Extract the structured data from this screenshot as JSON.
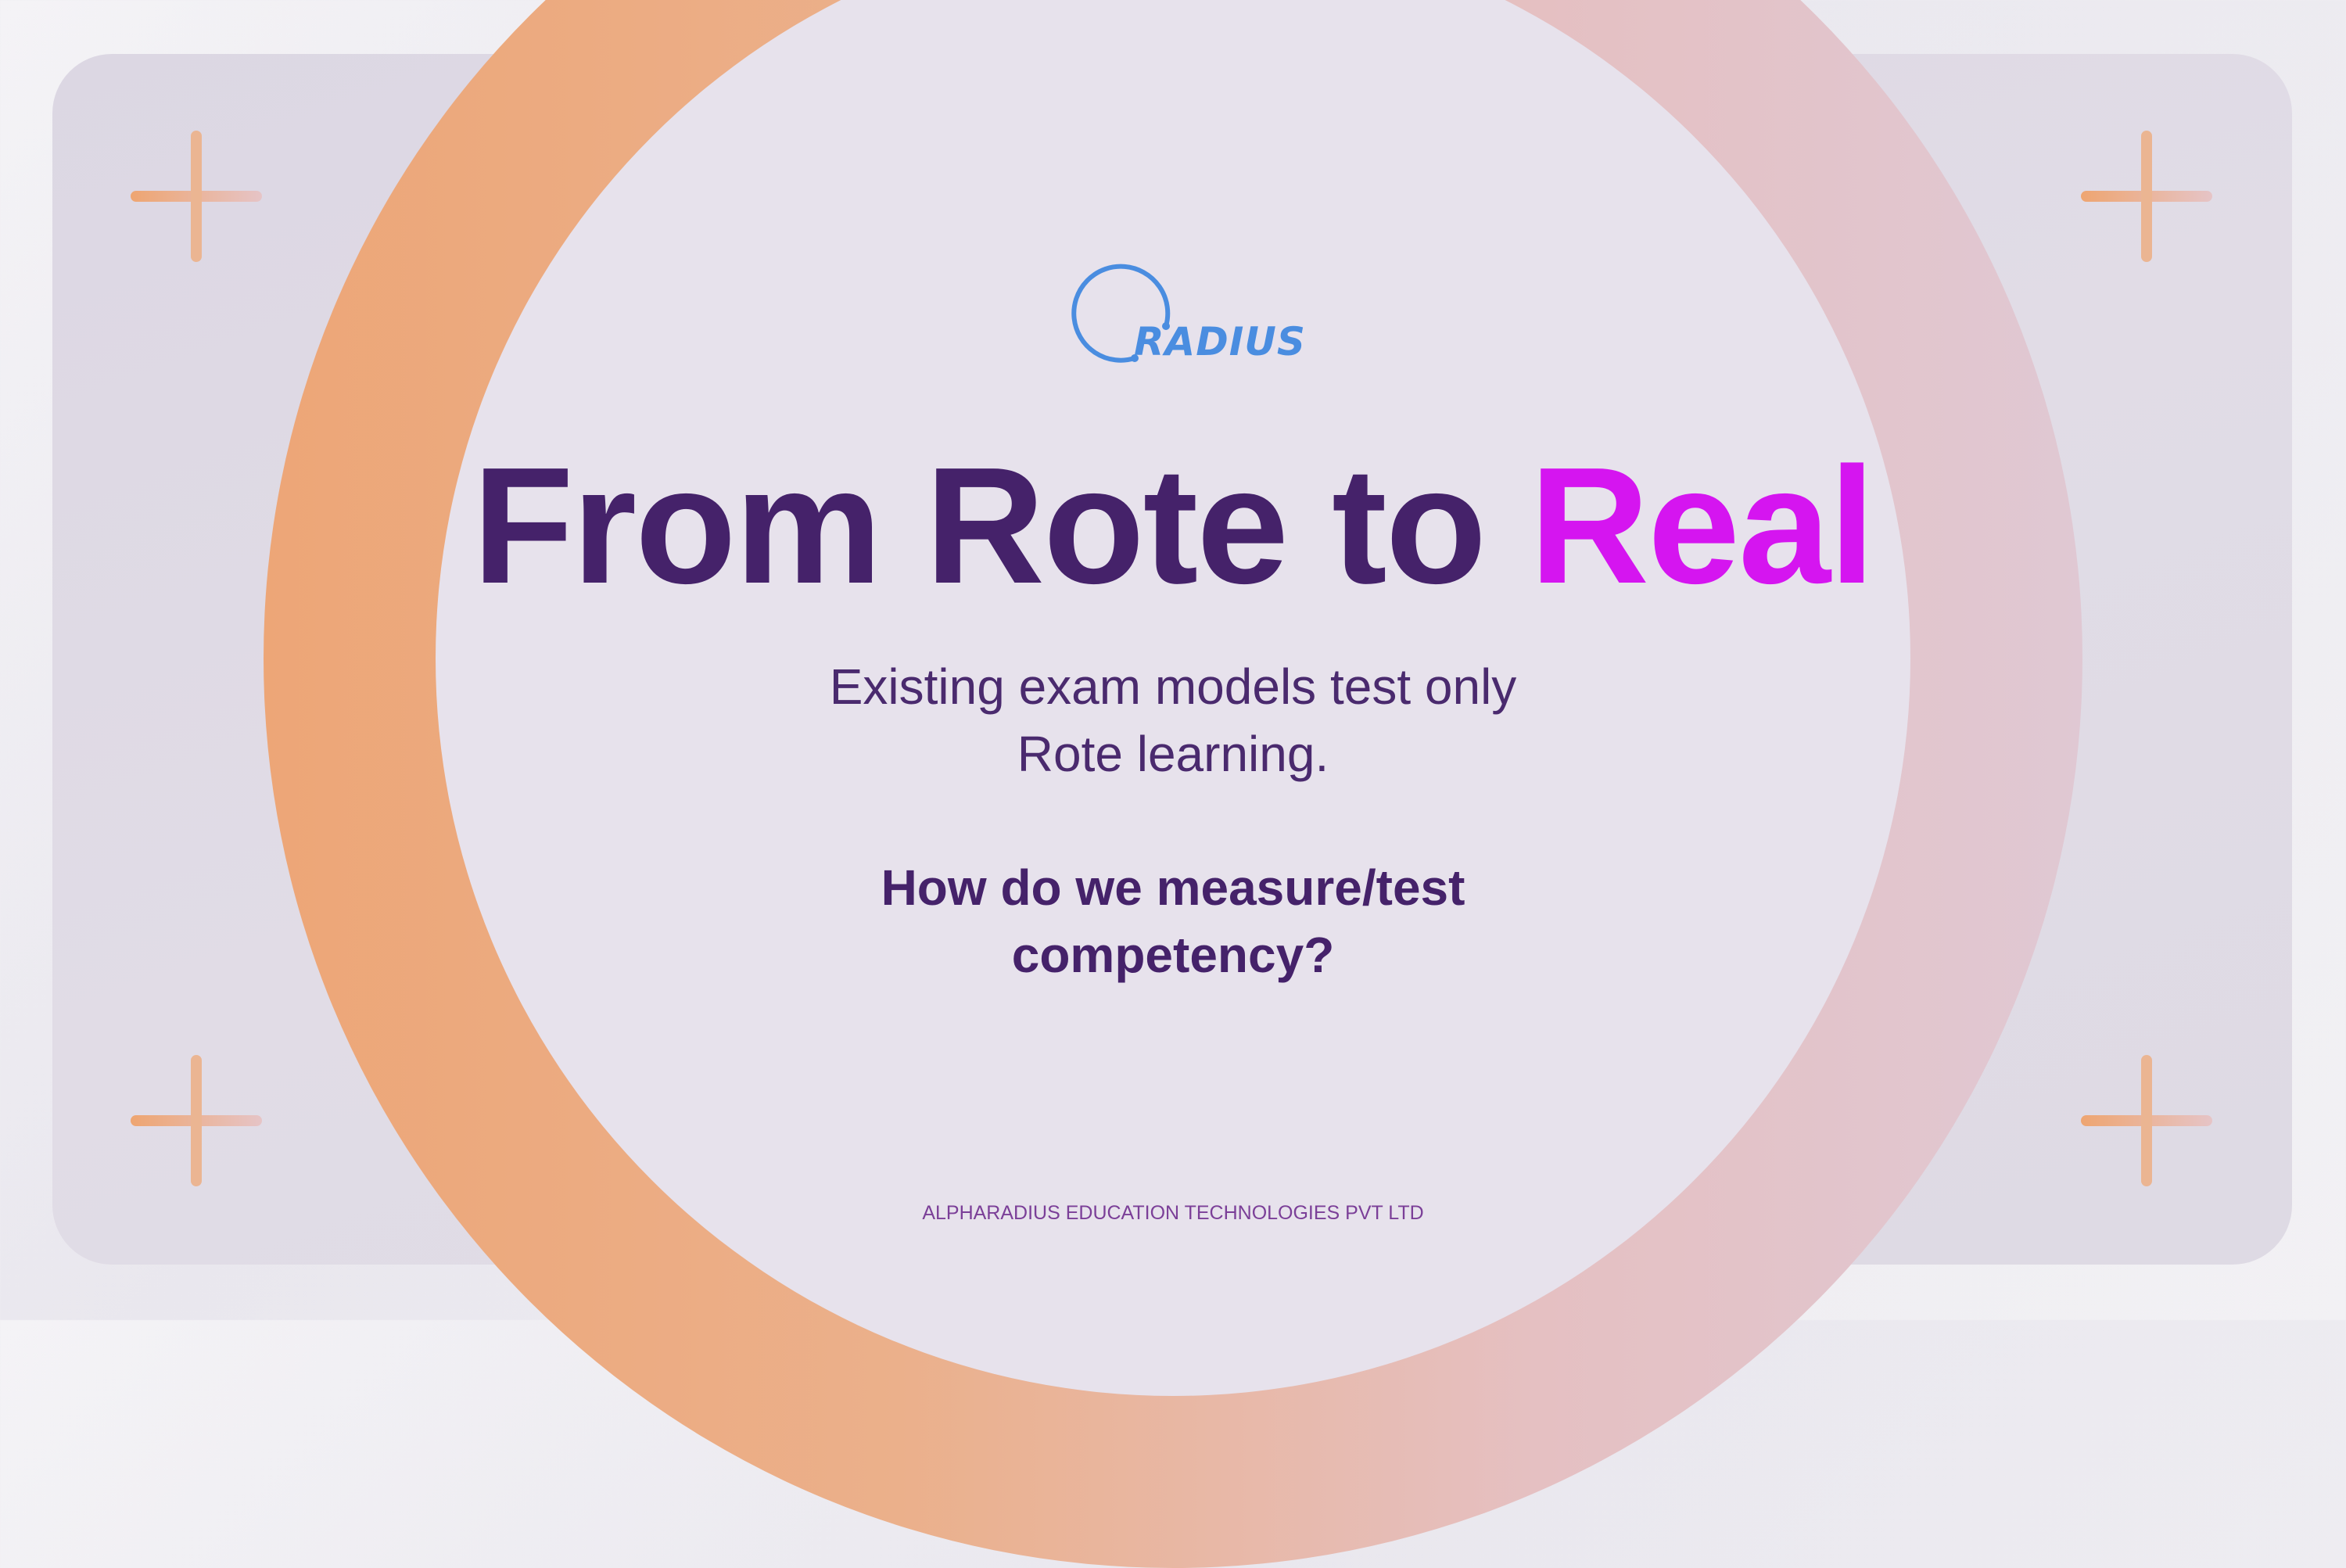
{
  "slide": {
    "logo_text": "RADIUS",
    "title_main": "From Rote to ",
    "title_highlight": "Real",
    "subtitle_line1": "Existing exam models test only",
    "subtitle_line2": "Rote learning.",
    "question_line1": "How do we measure/test",
    "question_line2": "competency?",
    "footer": "ALPHARADIUS EDUCATION TECHNOLOGIES PVT LTD"
  },
  "colors": {
    "title": "#45226a",
    "highlight": "#d515f0",
    "logo": "#4a8de0",
    "ring_left": "#eda677",
    "ring_right": "#e0c8d3",
    "footer": "#7b3f98"
  }
}
